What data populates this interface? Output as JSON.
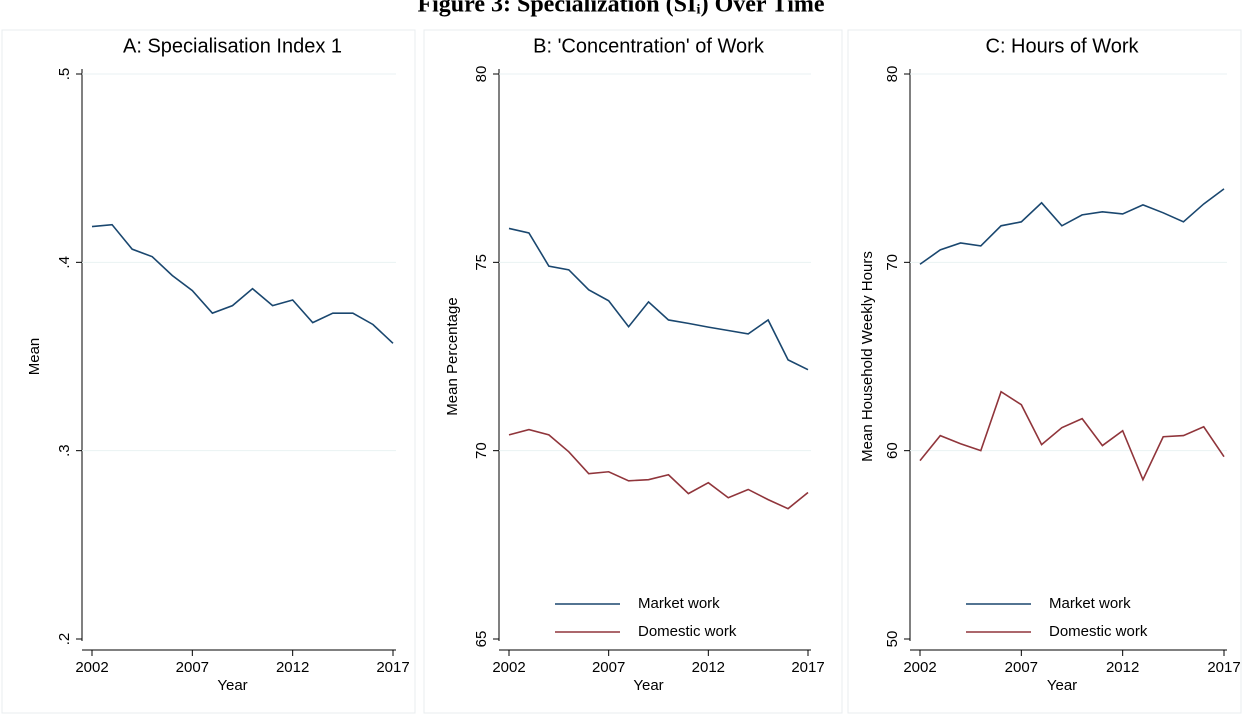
{
  "title": "Figure 3: Specialization (SIᵢ) Over Time",
  "chart_data": [
    {
      "type": "line",
      "title": "A: Specialisation Index 1",
      "x_label": "Year",
      "y_label": "Mean",
      "x": [
        2002,
        2003,
        2004,
        2005,
        2006,
        2007,
        2008,
        2009,
        2010,
        2011,
        2012,
        2013,
        2014,
        2015,
        2016,
        2017
      ],
      "values": [
        0.419,
        0.42,
        0.407,
        0.403,
        0.393,
        0.385,
        0.373,
        0.377,
        0.386,
        0.377,
        0.38,
        0.368,
        0.373,
        0.373,
        0.367,
        0.357
      ],
      "color": "#1a476f",
      "xlim": [
        2002,
        2017
      ],
      "xticks": [
        2002,
        2007,
        2012,
        2017
      ],
      "ylim": [
        0.2,
        0.5
      ],
      "yticks": [
        {
          "value": 0.2,
          "label": ".2"
        },
        {
          "value": 0.3,
          "label": ".3"
        },
        {
          "value": 0.4,
          "label": ".4"
        },
        {
          "value": 0.5,
          "label": ".5"
        }
      ],
      "grid": true
    },
    {
      "type": "line",
      "title": "B: 'Concentration' of Work",
      "x_label": "Year",
      "y_label": "Mean Percentage",
      "x": [
        2002,
        2003,
        2004,
        2005,
        2006,
        2007,
        2008,
        2009,
        2010,
        2011,
        2012,
        2013,
        2014,
        2015,
        2016,
        2017
      ],
      "series": [
        {
          "name": "Market work",
          "color": "#1a476f",
          "values": [
            75.9,
            75.78,
            74.9,
            74.8,
            74.27,
            73.98,
            73.29,
            73.95,
            73.47,
            73.38,
            73.28,
            73.19,
            73.1,
            73.47,
            72.41,
            72.15
          ]
        },
        {
          "name": "Domestic work",
          "color": "#90353b",
          "values": [
            70.42,
            70.56,
            70.42,
            69.97,
            69.39,
            69.44,
            69.2,
            69.23,
            69.36,
            68.86,
            69.15,
            68.75,
            68.97,
            68.7,
            68.46,
            68.89
          ]
        }
      ],
      "xlim": [
        2002,
        2017
      ],
      "xticks": [
        2002,
        2007,
        2012,
        2017
      ],
      "ylim": [
        65,
        80
      ],
      "yticks": [
        65,
        70,
        75,
        80
      ],
      "grid": true,
      "legend": "bottom"
    },
    {
      "type": "line",
      "title": "C: Hours of Work",
      "x_label": "Year",
      "y_label": "Mean Household Weekly Hours",
      "x": [
        2002,
        2003,
        2004,
        2005,
        2006,
        2007,
        2008,
        2009,
        2010,
        2011,
        2012,
        2013,
        2014,
        2015,
        2016,
        2017
      ],
      "series": [
        {
          "name": "Market work",
          "color": "#1a476f",
          "values": [
            69.9,
            70.66,
            71.03,
            70.87,
            71.94,
            72.15,
            73.16,
            71.94,
            72.52,
            72.68,
            72.57,
            73.05,
            72.63,
            72.15,
            73.1,
            73.9
          ]
        },
        {
          "name": "Domestic work",
          "color": "#90353b",
          "values": [
            59.47,
            60.8,
            60.37,
            60,
            63.13,
            62.44,
            60.32,
            61.22,
            61.7,
            60.27,
            61.06,
            58.46,
            60.74,
            60.8,
            61.27,
            59.68
          ]
        }
      ],
      "xlim": [
        2002,
        2017
      ],
      "xticks": [
        2002,
        2007,
        2012,
        2017
      ],
      "ylim": [
        50,
        80
      ],
      "yticks": [
        50,
        60,
        70,
        80
      ],
      "grid": true,
      "legend": "bottom"
    }
  ]
}
